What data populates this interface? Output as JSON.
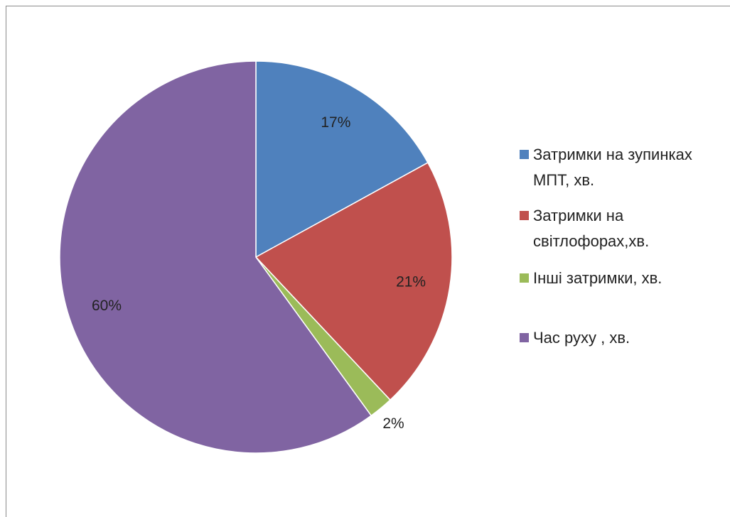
{
  "chart_data": {
    "type": "pie",
    "title": "",
    "legend_position": "right",
    "slices": [
      {
        "label": "Затримки на зупинках МПТ, хв.",
        "value": 17,
        "value_label": "17%",
        "color": "#4F81BD"
      },
      {
        "label": "Затримки на світлофорах,хв.",
        "value": 21,
        "value_label": "21%",
        "color": "#C0504D"
      },
      {
        "label": "Інші затримки, хв.",
        "value": 2,
        "value_label": "2%",
        "color": "#9BBB59"
      },
      {
        "label": "Час руху , хв.",
        "value": 60,
        "value_label": "60%",
        "color": "#8064A2"
      }
    ]
  },
  "legend": {
    "items": [
      {
        "label": "Затримки на зупинках\nМПТ, хв.",
        "color": "#4F81BD"
      },
      {
        "label": "Затримки на\nсвітлофорах,хв.",
        "color": "#C0504D"
      },
      {
        "label": "Інші затримки, хв.",
        "color": "#9BBB59"
      },
      {
        "label": "Час руху , хв.",
        "color": "#8064A2"
      }
    ]
  }
}
